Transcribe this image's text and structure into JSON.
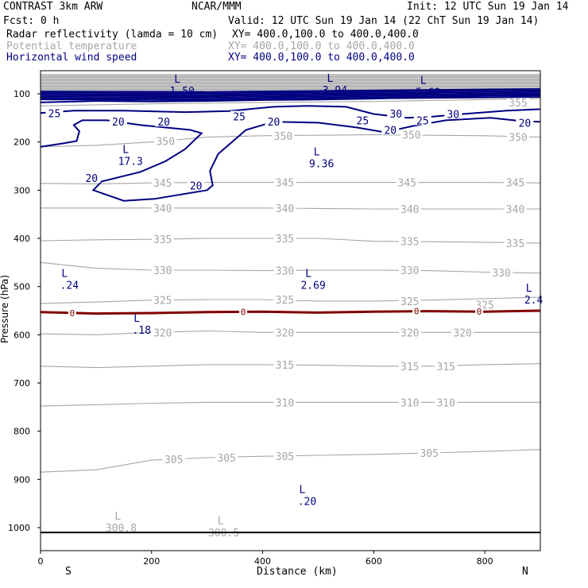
{
  "header": {
    "model": "CONTRAST  3km ARW",
    "org": "NCAR/MMM",
    "init": "Init: 12 UTC Sun 19 Jan 14",
    "fcst": "Fcst:    0 h",
    "valid": "Valid: 12 UTC Sun 19 Jan 14 (22 ChT Sun 19 Jan 14)",
    "fields": [
      {
        "name": "Radar reflectivity (lamda = 10 cm)",
        "xy": "XY= 400.0,100.0 to 400.0,400.0",
        "color": "#000000"
      },
      {
        "name": "Potential temperature",
        "xy": "XY= 400.0,100.0 to 400.0,400.0",
        "color": "#a6a6a6"
      },
      {
        "name": "Horizontal wind speed",
        "xy": "XY= 400.0,100.0 to 400.0,400.0",
        "color": "#000080"
      }
    ]
  },
  "chart_data": {
    "type": "cross-section contour",
    "xlabel": "Distance (km)",
    "ylabel": "Pressure (hPa)",
    "xlim": [
      0,
      900
    ],
    "ylim": [
      1050,
      50
    ],
    "x_ticks": [
      0,
      200,
      400,
      600,
      800
    ],
    "y_ticks": [
      100,
      200,
      300,
      400,
      500,
      600,
      700,
      800,
      900,
      1000
    ],
    "direction_labels": {
      "left": "S",
      "right": "N"
    },
    "theta_contours": {
      "color": "#a6a6a6",
      "levels": [
        {
          "value": 300,
          "points": [
            [
              0,
              1010
            ],
            [
              900,
              1010
            ]
          ]
        },
        {
          "value": 305,
          "points": [
            [
              0,
              885
            ],
            [
              100,
              880
            ],
            [
              200,
              860
            ],
            [
              300,
              855
            ],
            [
              400,
              852
            ],
            [
              500,
              850
            ],
            [
              600,
              848
            ],
            [
              700,
              845
            ],
            [
              800,
              842
            ],
            [
              900,
              838
            ]
          ]
        },
        {
          "value": 310,
          "points": [
            [
              0,
              748
            ],
            [
              100,
              745
            ],
            [
              200,
              742
            ],
            [
              300,
              740
            ],
            [
              400,
              740
            ],
            [
              500,
              740
            ],
            [
              600,
              740
            ],
            [
              700,
              740
            ],
            [
              800,
              740
            ],
            [
              900,
              740
            ]
          ]
        },
        {
          "value": 315,
          "points": [
            [
              0,
              665
            ],
            [
              100,
              668
            ],
            [
              200,
              665
            ],
            [
              300,
              662
            ],
            [
              400,
              662
            ],
            [
              500,
              663
            ],
            [
              600,
              665
            ],
            [
              700,
              665
            ],
            [
              800,
              662
            ],
            [
              900,
              660
            ]
          ]
        },
        {
          "value": 320,
          "points": [
            [
              0,
              598
            ],
            [
              100,
              600
            ],
            [
              200,
              595
            ],
            [
              300,
              592
            ],
            [
              400,
              595
            ],
            [
              500,
              595
            ],
            [
              600,
              595
            ],
            [
              700,
              595
            ],
            [
              800,
              595
            ],
            [
              900,
              595
            ]
          ]
        },
        {
          "value": 325,
          "points": [
            [
              0,
              535
            ],
            [
              100,
              532
            ],
            [
              200,
              528
            ],
            [
              300,
              527
            ],
            [
              400,
              527
            ],
            [
              500,
              530
            ],
            [
              600,
              530
            ],
            [
              700,
              528
            ],
            [
              800,
              525
            ],
            [
              900,
              522
            ]
          ]
        },
        {
          "value": 330,
          "points": [
            [
              0,
              450
            ],
            [
              100,
              462
            ],
            [
              200,
              466
            ],
            [
              300,
              466
            ],
            [
              400,
              467
            ],
            [
              500,
              466
            ],
            [
              600,
              466
            ],
            [
              700,
              467
            ],
            [
              800,
              470
            ],
            [
              900,
              472
            ]
          ]
        },
        {
          "value": 335,
          "points": [
            [
              0,
              405
            ],
            [
              100,
              403
            ],
            [
              200,
              402
            ],
            [
              300,
              400
            ],
            [
              400,
              400
            ],
            [
              500,
              400
            ],
            [
              600,
              406
            ],
            [
              700,
              407
            ],
            [
              800,
              408
            ],
            [
              900,
              410
            ]
          ]
        },
        {
          "value": 340,
          "points": [
            [
              0,
              337
            ],
            [
              100,
              337
            ],
            [
              200,
              337
            ],
            [
              300,
              337
            ],
            [
              400,
              337
            ],
            [
              500,
              338
            ],
            [
              600,
              339
            ],
            [
              700,
              339
            ],
            [
              800,
              339
            ],
            [
              900,
              339
            ]
          ]
        },
        {
          "value": 345,
          "points": [
            [
              0,
              286
            ],
            [
              100,
              287
            ],
            [
              200,
              285
            ],
            [
              300,
              284
            ],
            [
              400,
              284
            ],
            [
              500,
              284
            ],
            [
              600,
              284
            ],
            [
              700,
              284
            ],
            [
              800,
              284
            ],
            [
              900,
              285
            ]
          ]
        },
        {
          "value": 350,
          "points": [
            [
              0,
              210
            ],
            [
              100,
              207
            ],
            [
              200,
              200
            ],
            [
              300,
              190
            ],
            [
              400,
              187
            ],
            [
              500,
              186
            ],
            [
              600,
              185
            ],
            [
              700,
              186
            ],
            [
              800,
              187
            ],
            [
              900,
              190
            ]
          ]
        },
        {
          "value": 355,
          "points": [
            [
              0,
              125
            ],
            [
              200,
              121
            ],
            [
              400,
              118
            ],
            [
              600,
              116
            ],
            [
              800,
              112
            ],
            [
              900,
              110
            ]
          ]
        }
      ],
      "labels": [
        {
          "text": "350",
          "x": 225,
          "p": 198
        },
        {
          "text": "350",
          "x": 437,
          "p": 187
        },
        {
          "text": "350",
          "x": 668,
          "p": 185
        },
        {
          "text": "350",
          "x": 860,
          "p": 190
        },
        {
          "text": "355",
          "x": 860,
          "p": 118
        },
        {
          "text": "345",
          "x": 220,
          "p": 285
        },
        {
          "text": "345",
          "x": 440,
          "p": 284
        },
        {
          "text": "345",
          "x": 660,
          "p": 284
        },
        {
          "text": "345",
          "x": 855,
          "p": 284
        },
        {
          "text": "340",
          "x": 220,
          "p": 337
        },
        {
          "text": "340",
          "x": 440,
          "p": 337
        },
        {
          "text": "340",
          "x": 665,
          "p": 339
        },
        {
          "text": "340",
          "x": 855,
          "p": 339
        },
        {
          "text": "335",
          "x": 220,
          "p": 402
        },
        {
          "text": "335",
          "x": 440,
          "p": 400
        },
        {
          "text": "335",
          "x": 665,
          "p": 406
        },
        {
          "text": "335",
          "x": 855,
          "p": 410
        },
        {
          "text": "330",
          "x": 220,
          "p": 466
        },
        {
          "text": "330",
          "x": 440,
          "p": 467
        },
        {
          "text": "330",
          "x": 665,
          "p": 466
        },
        {
          "text": "330",
          "x": 830,
          "p": 471
        },
        {
          "text": "325",
          "x": 220,
          "p": 528
        },
        {
          "text": "325",
          "x": 440,
          "p": 527
        },
        {
          "text": "325",
          "x": 665,
          "p": 530
        },
        {
          "text": "325",
          "x": 800,
          "p": 538
        },
        {
          "text": "320",
          "x": 220,
          "p": 595
        },
        {
          "text": "320",
          "x": 440,
          "p": 595
        },
        {
          "text": "320",
          "x": 665,
          "p": 595
        },
        {
          "text": "320",
          "x": 760,
          "p": 595
        },
        {
          "text": "315",
          "x": 440,
          "p": 662
        },
        {
          "text": "315",
          "x": 665,
          "p": 665
        },
        {
          "text": "315",
          "x": 730,
          "p": 665
        },
        {
          "text": "310",
          "x": 440,
          "p": 740
        },
        {
          "text": "310",
          "x": 665,
          "p": 740
        },
        {
          "text": "310",
          "x": 730,
          "p": 740
        },
        {
          "text": "305",
          "x": 240,
          "p": 858
        },
        {
          "text": "305",
          "x": 335,
          "p": 855
        },
        {
          "text": "305",
          "x": 440,
          "p": 852
        },
        {
          "text": "305",
          "x": 700,
          "p": 845
        }
      ],
      "lows": [
        {
          "value": "300.8",
          "x": 145,
          "p": 993
        },
        {
          "value": "300.5",
          "x": 330,
          "p": 1003
        }
      ]
    },
    "wind_contours": {
      "color": "#000080",
      "levels": [
        {
          "value": 20,
          "points": [
            [
              0,
              210
            ],
            [
              40,
              203
            ],
            [
              65,
              198
            ],
            [
              70,
              178
            ],
            [
              60,
              165
            ],
            [
              75,
              155
            ],
            [
              120,
              155
            ],
            [
              180,
              165
            ],
            [
              270,
              175
            ],
            [
              290,
              182
            ],
            [
              260,
              215
            ],
            [
              225,
              240
            ],
            [
              180,
              262
            ],
            [
              110,
              282
            ],
            [
              95,
              300
            ],
            [
              150,
              322
            ],
            [
              205,
              318
            ],
            [
              300,
              300
            ],
            [
              310,
              290
            ],
            [
              305,
              260
            ],
            [
              320,
              225
            ],
            [
              370,
              175
            ],
            [
              420,
              158
            ],
            [
              500,
              160
            ],
            [
              570,
              170
            ],
            [
              620,
              180
            ],
            [
              670,
              167
            ],
            [
              730,
              155
            ],
            [
              810,
              150
            ],
            [
              870,
              157
            ],
            [
              900,
              158
            ]
          ]
        },
        {
          "value": 25,
          "points": [
            [
              0,
              140
            ],
            [
              60,
              135
            ],
            [
              150,
              135
            ],
            [
              260,
              138
            ],
            [
              340,
              136
            ],
            [
              420,
              127
            ],
            [
              480,
              125
            ],
            [
              550,
              127
            ],
            [
              600,
              142
            ],
            [
              660,
              150
            ],
            [
              700,
              148
            ],
            [
              760,
              142
            ],
            [
              840,
              135
            ],
            [
              900,
              132
            ]
          ]
        },
        {
          "value": 30,
          "points": [
            [
              0,
              118
            ],
            [
              100,
              115
            ],
            [
              200,
              116
            ],
            [
              300,
              115
            ],
            [
              400,
              113
            ],
            [
              500,
              112
            ],
            [
              600,
              110
            ],
            [
              700,
              107
            ],
            [
              800,
              104
            ],
            [
              900,
              102
            ]
          ]
        }
      ],
      "labels": [
        {
          "text": "20",
          "x": 140,
          "p": 158
        },
        {
          "text": "20",
          "x": 222,
          "p": 158
        },
        {
          "text": "20",
          "x": 92,
          "p": 275
        },
        {
          "text": "20",
          "x": 280,
          "p": 290
        },
        {
          "text": "20",
          "x": 420,
          "p": 158
        },
        {
          "text": "20",
          "x": 630,
          "p": 175
        },
        {
          "text": "20",
          "x": 872,
          "p": 160
        },
        {
          "text": "25",
          "x": 25,
          "p": 140
        },
        {
          "text": "25",
          "x": 358,
          "p": 147
        },
        {
          "text": "25",
          "x": 580,
          "p": 155
        },
        {
          "text": "25",
          "x": 688,
          "p": 155
        },
        {
          "text": "30",
          "x": 640,
          "p": 141
        },
        {
          "text": "30",
          "x": 743,
          "p": 142
        }
      ],
      "lows": [
        {
          "value": "1.50",
          "x": 255,
          "p": 87
        },
        {
          "value": "3.94",
          "x": 530,
          "p": 85
        },
        {
          "value": "5.62",
          "x": 698,
          "p": 89
        },
        {
          "value": "17.3",
          "x": 162,
          "p": 233
        },
        {
          "value": "9.36",
          "x": 506,
          "p": 238
        },
        {
          "value": ".24",
          "x": 52,
          "p": 490
        },
        {
          "value": "2.69",
          "x": 491,
          "p": 490
        },
        {
          "value": ".18",
          "x": 182,
          "p": 583
        },
        {
          "value": "2.4",
          "x": 888,
          "p": 520
        },
        {
          "value": ".20",
          "x": 480,
          "p": 938
        }
      ]
    },
    "freezing_line": {
      "value": "0",
      "color": "#800000",
      "points": [
        [
          0,
          553
        ],
        [
          100,
          556
        ],
        [
          200,
          555
        ],
        [
          300,
          553
        ],
        [
          400,
          552
        ],
        [
          500,
          554
        ],
        [
          600,
          552
        ],
        [
          700,
          551
        ],
        [
          800,
          552
        ],
        [
          900,
          550
        ]
      ],
      "label_x": [
        57,
        365,
        677,
        790
      ]
    },
    "upper_band": {
      "color": "#a6a6a6",
      "p_top": 60,
      "p_bottom": 95
    }
  }
}
